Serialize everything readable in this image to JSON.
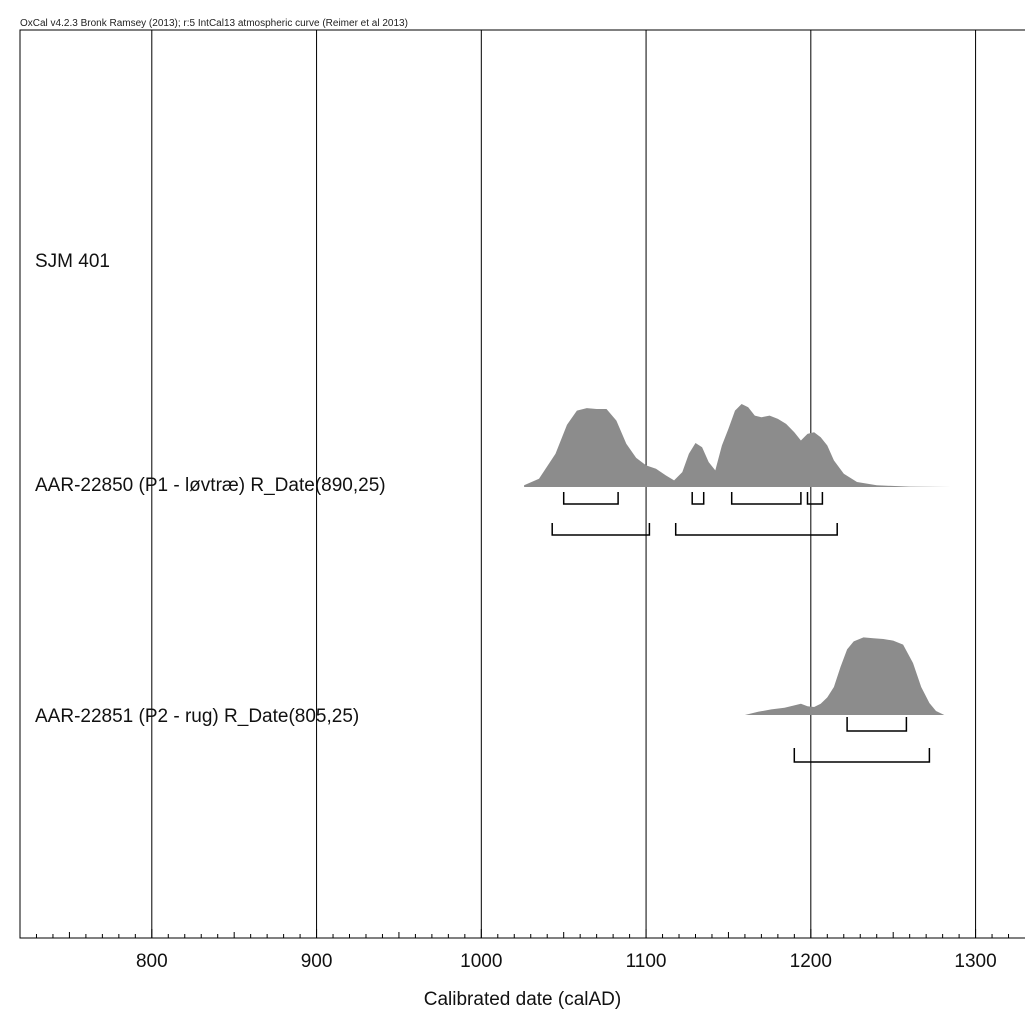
{
  "header": {
    "text": "OxCal v4.2.3 Bronk Ramsey (2013); r:5 IntCal13 atmospheric curve (Reimer et al 2013)"
  },
  "chart_data": {
    "type": "area",
    "title": "",
    "xlabel": "Calibrated date (calAD)",
    "xlim": [
      720,
      1330
    ],
    "x_ticks": [
      800,
      900,
      1000,
      1100,
      1200,
      1300
    ],
    "x_tick_labels": [
      "800",
      "900",
      "1000",
      "1100",
      "1200",
      "1300"
    ],
    "grid": true,
    "colors": {
      "fill": "#8c8c8c",
      "line": "#000000",
      "frame": "#000000"
    },
    "rows": [
      {
        "label": "SJM 401",
        "kind": "group"
      },
      {
        "label": "AAR-22850 (P1 - løvtræ) R_Date(890,25)",
        "kind": "date",
        "distribution": {
          "x": [
            1026,
            1035,
            1045,
            1052,
            1058,
            1064,
            1070,
            1076,
            1082,
            1088,
            1094,
            1100,
            1106,
            1112,
            1117,
            1122,
            1126,
            1130,
            1134,
            1138,
            1142,
            1146,
            1150,
            1154,
            1158,
            1162,
            1166,
            1170,
            1175,
            1180,
            1185,
            1190,
            1194,
            1198,
            1202,
            1206,
            1210,
            1214,
            1220,
            1228,
            1240,
            1260,
            1285
          ],
          "y": [
            0.02,
            0.1,
            0.4,
            0.75,
            0.92,
            0.95,
            0.94,
            0.94,
            0.8,
            0.52,
            0.35,
            0.26,
            0.22,
            0.14,
            0.08,
            0.18,
            0.4,
            0.53,
            0.48,
            0.3,
            0.2,
            0.5,
            0.7,
            0.92,
            1.0,
            0.96,
            0.86,
            0.84,
            0.86,
            0.82,
            0.76,
            0.66,
            0.56,
            0.64,
            0.66,
            0.6,
            0.5,
            0.32,
            0.16,
            0.06,
            0.02,
            0.005,
            0.0
          ]
        },
        "range_68": [
          [
            1050,
            1083
          ],
          [
            1128,
            1135
          ],
          [
            1152,
            1194
          ],
          [
            1198,
            1207
          ]
        ],
        "range_95": [
          [
            1043,
            1102
          ],
          [
            1118,
            1216
          ]
        ]
      },
      {
        "label": "AAR-22851 (P2 - rug) R_Date(805,25)",
        "kind": "date",
        "distribution": {
          "x": [
            1160,
            1168,
            1176,
            1184,
            1190,
            1194,
            1198,
            1202,
            1206,
            1210,
            1214,
            1218,
            1222,
            1226,
            1232,
            1238,
            1244,
            1250,
            1256,
            1262,
            1267,
            1272,
            1276,
            1281
          ],
          "y": [
            0.0,
            0.04,
            0.07,
            0.09,
            0.12,
            0.14,
            0.11,
            0.1,
            0.14,
            0.22,
            0.35,
            0.6,
            0.82,
            0.92,
            0.97,
            0.96,
            0.95,
            0.93,
            0.88,
            0.65,
            0.35,
            0.15,
            0.05,
            0.0
          ]
        },
        "range_68": [
          [
            1222,
            1258
          ]
        ],
        "range_95": [
          [
            1190,
            1272
          ]
        ]
      }
    ]
  }
}
